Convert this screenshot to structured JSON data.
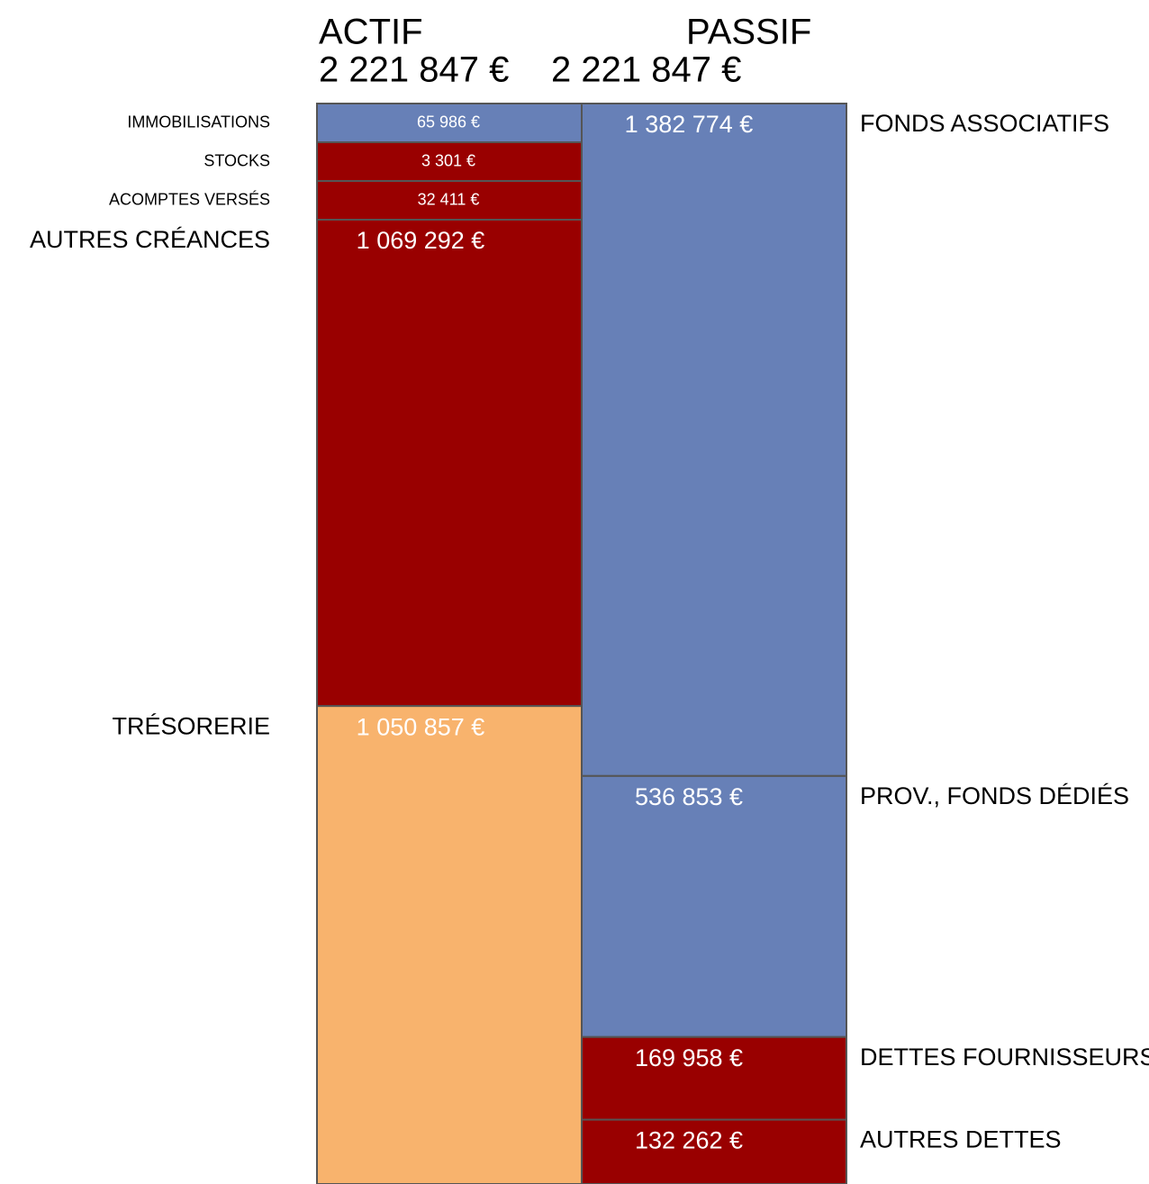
{
  "chart_data": {
    "type": "balance",
    "columns": [
      {
        "name": "ACTIF",
        "total": 2221847,
        "total_label": "2 221 847 €",
        "side": "left",
        "segments": [
          {
            "name": "IMMOBILISATIONS",
            "value": 65986,
            "value_label": "65 986 €",
            "color": "#6780b7"
          },
          {
            "name": "STOCKS",
            "value": 3301,
            "value_label": "3 301 €",
            "color": "#990000"
          },
          {
            "name": "ACOMPTES VERSÉS",
            "value": 32411,
            "value_label": "32 411 €",
            "color": "#990000"
          },
          {
            "name": "AUTRES CRÉANCES",
            "value": 1069292,
            "value_label": "1 069 292 €",
            "color": "#990000"
          },
          {
            "name": "TRÉSORERIE",
            "value": 1050857,
            "value_label": "1 050 857 €",
            "color": "#f8b36d"
          }
        ]
      },
      {
        "name": "PASSIF",
        "total": 2221847,
        "total_label": "2 221 847 €",
        "side": "right",
        "segments": [
          {
            "name": "FONDS ASSOCIATIFS",
            "value": 1382774,
            "value_label": "1 382 774 €",
            "color": "#6780b7"
          },
          {
            "name": "PROV., FONDS DÉDIÉS",
            "value": 536853,
            "value_label": "536 853 €",
            "color": "#6780b7"
          },
          {
            "name": "DETTES FOURNISSEURS",
            "value": 169958,
            "value_label": "169 958 €",
            "color": "#990000"
          },
          {
            "name": "AUTRES DETTES",
            "value": 132262,
            "value_label": "132 262 €",
            "color": "#990000"
          }
        ]
      }
    ]
  }
}
